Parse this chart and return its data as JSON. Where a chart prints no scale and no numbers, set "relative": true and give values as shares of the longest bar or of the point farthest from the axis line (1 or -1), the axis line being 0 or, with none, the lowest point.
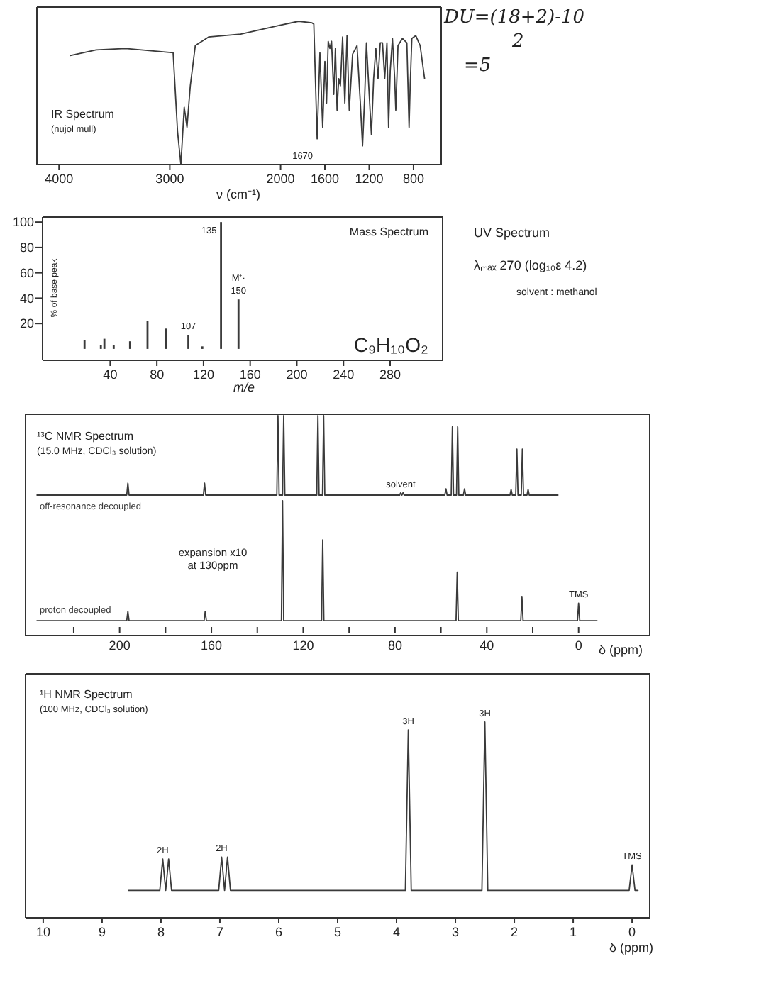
{
  "chart_data": [
    {
      "type": "line",
      "title": "IR Spectrum",
      "subtitle": "(nujol mull)",
      "xlabel": "ν (cm⁻¹)",
      "relative": true,
      "xlim": [
        4200,
        550
      ],
      "xticks": [
        4000,
        3000,
        2000,
        1600,
        1200,
        800
      ],
      "tick_labels": "x",
      "annotations": [
        {
          "text": "1670",
          "x": 1670,
          "y": 0.18
        }
      ],
      "series": [
        {
          "color": "#3a3a3a",
          "x": [
            3900,
            3665,
            3400,
            2970,
            2930,
            2900,
            2870,
            2845,
            2815,
            2770,
            2650,
            2360,
            2020,
            1837,
            1719,
            1700,
            1670,
            1645,
            1620,
            1600,
            1585,
            1570,
            1555,
            1540,
            1520,
            1505,
            1490,
            1475,
            1460,
            1440,
            1420,
            1400,
            1380,
            1350,
            1310,
            1280,
            1260,
            1240,
            1225,
            1200,
            1180,
            1160,
            1140,
            1120,
            1100,
            1080,
            1060,
            1040,
            1025,
            1010,
            990,
            970,
            960,
            940,
            900,
            860,
            840,
            830,
            815,
            780,
            740,
            700
          ],
          "values": [
            0.76,
            0.8,
            0.81,
            0.78,
            0.23,
            0,
            0.4,
            0.26,
            0.55,
            0.83,
            0.89,
            0.91,
            0.97,
            1,
            0.99,
            0.98,
            0.18,
            0.78,
            0.26,
            0.72,
            0.43,
            0.86,
            0.81,
            0.86,
            0.49,
            0.81,
            0.38,
            0.6,
            0.55,
            0.89,
            0.43,
            0.9,
            0.38,
            0.77,
            0.83,
            0.43,
            0.13,
            0.49,
            0.85,
            0.49,
            0.21,
            0.6,
            0.81,
            0.6,
            0.85,
            0.85,
            0.6,
            0.85,
            0.26,
            0.66,
            0.88,
            0.6,
            0.38,
            0.83,
            0.88,
            0.85,
            0.26,
            0.55,
            0.88,
            0.9,
            0.83,
            0.6
          ]
        }
      ]
    },
    {
      "type": "bar",
      "title": "Mass Spectrum",
      "xlabel": "m/e",
      "ylabel": "% of base peak",
      "xlim": [
        -18,
        325
      ],
      "xticks": [
        40,
        80,
        120,
        160,
        200,
        240,
        280
      ],
      "ylim": [
        -9,
        104
      ],
      "yticks": [
        20,
        40,
        60,
        80,
        100
      ],
      "color": "#3a3a3a",
      "x": [
        18,
        32,
        35,
        43,
        57,
        72,
        88,
        107,
        119,
        135,
        150
      ],
      "values": [
        7,
        3,
        8,
        3,
        6,
        22,
        16,
        11,
        2,
        100,
        39
      ],
      "annotations": [
        {
          "text": "135",
          "x": 135,
          "y": 100
        },
        {
          "text": "M⁺·",
          "x": 150,
          "y": 39
        },
        {
          "text": "150",
          "x": 150,
          "y": 39
        },
        {
          "text": "107",
          "x": 107,
          "y": 11
        },
        "C₉H₁₀O₂"
      ]
    },
    {
      "type": "other",
      "title": "UV Spectrum",
      "annotations": [
        "λₘₐₓ 270 (log₁₀ε 4.2)",
        "solvent : methanol"
      ]
    },
    {
      "type": "other",
      "annotations": [
        "DU=(18+2)-10",
        "2",
        "=5"
      ]
    },
    {
      "type": "line",
      "title": "¹³C NMR Spectrum",
      "subtitle": "(15.0 MHz, CDCl₃ solution)",
      "relative": true,
      "xlim": [
        241,
        -31
      ],
      "tick_labels": false,
      "annotations": [
        {
          "text": "solvent",
          "x": 77.5,
          "y": 0.03
        }
      ],
      "series": [
        {
          "name": "off-resonance decoupled",
          "color": "#3a3a3a",
          "x": [
            236,
            196.9,
            196.4,
            195.9,
            163.5,
            163,
            162.5,
            131.5,
            131,
            130.5,
            129,
            128.5,
            128,
            114.1,
            113.6,
            113.1,
            111.6,
            111.1,
            110.6,
            78,
            77.5,
            77,
            76.5,
            76,
            58.3,
            57.8,
            57.3,
            55.5,
            55,
            54.5,
            53.2,
            52.7,
            52.2,
            50.2,
            49.7,
            49.2,
            29.9,
            29.4,
            28.9,
            27.4,
            26.9,
            26.4,
            25,
            24.5,
            24,
            22.5,
            22,
            21.5,
            9
          ],
          "values": [
            0,
            0,
            0.15,
            0,
            0,
            0.15,
            0,
            0,
            1,
            0,
            0,
            1,
            0,
            0,
            1,
            0,
            0,
            1,
            0,
            0,
            0.03,
            0,
            0.03,
            0,
            0,
            0.08,
            0,
            0,
            0.86,
            0,
            0,
            0.86,
            0,
            0,
            0.08,
            0,
            0,
            0.07,
            0,
            0,
            0.58,
            0,
            0,
            0.58,
            0,
            0,
            0.07,
            0,
            0
          ]
        }
      ]
    },
    {
      "type": "line",
      "xlabel": "δ (ppm)",
      "relative": true,
      "xlim": [
        241,
        -31
      ],
      "xticks": [
        {
          "value": 220,
          "label": null
        },
        200,
        {
          "value": 180,
          "label": null
        },
        160,
        {
          "value": 140,
          "label": null
        },
        120,
        {
          "value": 100,
          "label": null
        },
        80,
        {
          "value": 60,
          "label": null
        },
        40,
        {
          "value": 20,
          "label": null
        },
        0
      ],
      "tick_labels": "x",
      "annotations": [
        "expansion x10",
        "at 130ppm",
        {
          "text": "TMS",
          "x": 0,
          "y": 0.24
        }
      ],
      "series": [
        {
          "name": "proton decoupled",
          "color": "#3a3a3a",
          "x": [
            236,
            196.9,
            196.4,
            195.9,
            163.2,
            162.7,
            162.2,
            129.5,
            129,
            128.5,
            112,
            111.5,
            111,
            53.4,
            52.9,
            52.4,
            25.2,
            24.7,
            24.2,
            0.5,
            0,
            -0.5,
            -8
          ],
          "values": [
            0.11,
            0.11,
            0.18,
            0.11,
            0.11,
            0.18,
            0.11,
            0.11,
            1,
            0.11,
            0.11,
            0.71,
            0.11,
            0.11,
            0.47,
            0.11,
            0.11,
            0.29,
            0.11,
            0.11,
            0.24,
            0.11,
            0.11
          ]
        }
      ]
    },
    {
      "type": "line",
      "title": "¹H NMR Spectrum",
      "subtitle": "(100 MHz, CDCl₃ solution)",
      "xlabel": "δ (ppm)",
      "relative": true,
      "xlim": [
        10.3,
        -0.3
      ],
      "xticks": [
        10,
        9,
        8,
        7,
        6,
        5,
        4,
        3,
        2,
        1,
        0
      ],
      "tick_labels": "x",
      "annotations": [
        {
          "text": "2H",
          "x": 7.97,
          "y": 0.3
        },
        {
          "text": "2H",
          "x": 6.97,
          "y": 0.31
        },
        {
          "text": "3H",
          "x": 3.8,
          "y": 0.96
        },
        {
          "text": "3H",
          "x": 2.5,
          "y": 1
        },
        {
          "text": "TMS",
          "x": 0,
          "y": 0.27
        }
      ],
      "series": [
        {
          "color": "#3a3a3a",
          "x": [
            8.55,
            8.02,
            7.97,
            7.92,
            7.87,
            7.82,
            7.02,
            6.97,
            6.92,
            6.87,
            6.82,
            3.85,
            3.8,
            3.75,
            2.55,
            2.5,
            2.45,
            0.05,
            0,
            -0.05,
            -0.1
          ],
          "values": [
            0.14,
            0.14,
            0.3,
            0.14,
            0.3,
            0.14,
            0.14,
            0.31,
            0.14,
            0.31,
            0.14,
            0.14,
            0.96,
            0.14,
            0.14,
            1,
            0.14,
            0.14,
            0.27,
            0.14,
            0.14
          ]
        }
      ]
    }
  ]
}
